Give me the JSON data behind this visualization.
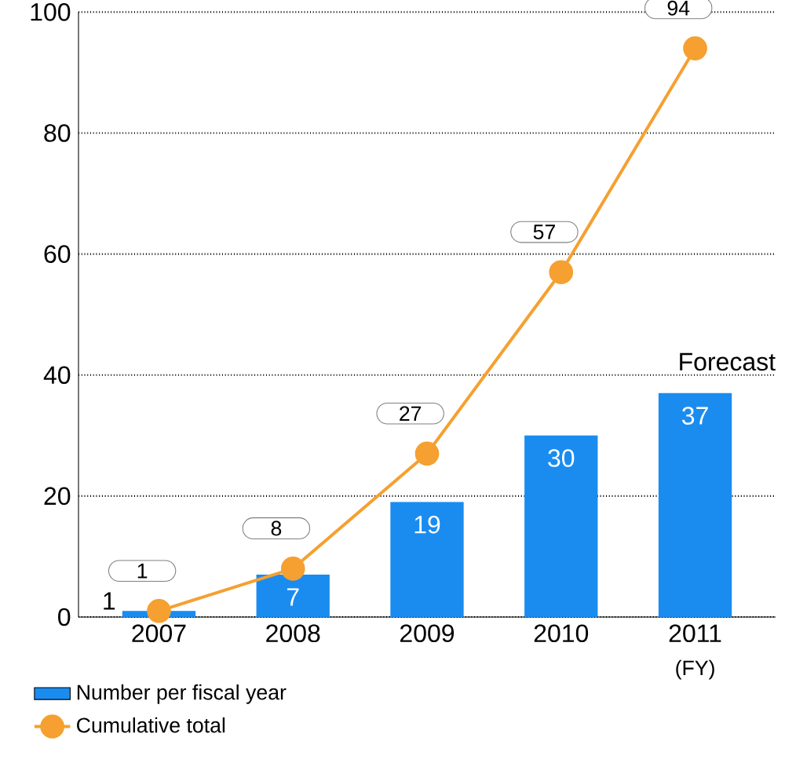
{
  "chart_data": {
    "type": "bar",
    "xlabel": "(FY)",
    "categories": [
      "2007",
      "2008",
      "2009",
      "2010",
      "2011"
    ],
    "series": [
      {
        "name": "Number per fiscal year",
        "color": "#1a8cf0",
        "values": [
          1,
          7,
          19,
          30,
          37
        ]
      },
      {
        "name": "Cumulative total",
        "type": "line",
        "color": "#f5a030",
        "values": [
          1,
          8,
          27,
          57,
          94
        ]
      }
    ],
    "ylim": [
      0,
      100
    ],
    "yticks": [
      0,
      20,
      40,
      60,
      80,
      100
    ],
    "grid": "y",
    "legend": "bottom",
    "marker": "circle",
    "data_labels": true,
    "annotations": [
      "Forecast"
    ]
  }
}
